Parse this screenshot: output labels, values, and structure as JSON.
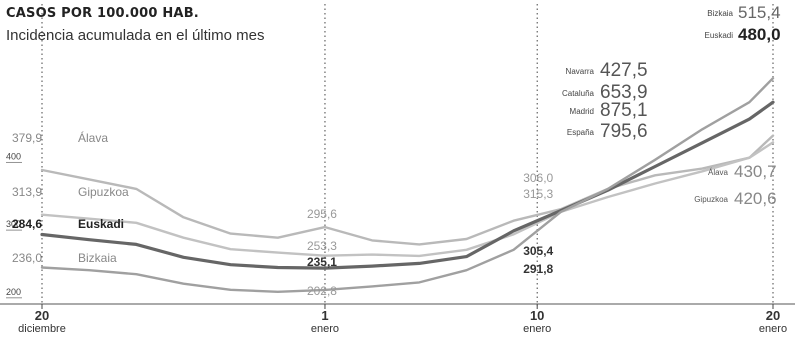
{
  "chart_data": {
    "type": "line",
    "title": "CASOS POR 100.000 HAB.",
    "subtitle": "Incidencia acumulada en el último mes",
    "x_ticks": [
      {
        "day": 0,
        "line1": "20",
        "line2": "diciembre"
      },
      {
        "day": 12,
        "line1": "1",
        "line2": "enero"
      },
      {
        "day": 21,
        "line1": "10",
        "line2": "enero"
      },
      {
        "day": 31,
        "line1": "20",
        "line2": "enero"
      }
    ],
    "y_ticks": [
      200,
      300,
      400
    ],
    "ylim": [
      185,
      560
    ],
    "xlim": [
      0,
      31
    ],
    "grid": "vertical dotted lines at x ticks",
    "series": [
      {
        "name": "Álava",
        "color": "#b9b9b9",
        "x": [
          0,
          2,
          4,
          6,
          8,
          10,
          12,
          14,
          16,
          18,
          20,
          22,
          24,
          26,
          28,
          30,
          31
        ],
        "values": [
          379.9,
          366,
          352,
          310,
          286,
          280,
          295.6,
          276,
          270,
          278,
          305,
          322,
          352,
          372,
          382,
          398,
          430.7
        ]
      },
      {
        "name": "Gipuzkoa",
        "color": "#c2c2c2",
        "x": [
          0,
          2,
          4,
          6,
          8,
          10,
          12,
          14,
          16,
          18,
          20,
          22,
          24,
          26,
          28,
          30,
          31
        ],
        "values": [
          313.9,
          308,
          302,
          280,
          263,
          258,
          253.3,
          255,
          253,
          262,
          285,
          318,
          340,
          360,
          378,
          398,
          420.6
        ]
      },
      {
        "name": "Euskadi",
        "color": "#666666",
        "x": [
          0,
          2,
          4,
          6,
          8,
          10,
          12,
          14,
          16,
          18,
          20,
          22,
          24,
          26,
          28,
          30,
          31
        ],
        "values": [
          284.6,
          277,
          270,
          251,
          240,
          236,
          235.1,
          238,
          242,
          252,
          290,
          320,
          350,
          385,
          420,
          455,
          480.0
        ]
      },
      {
        "name": "Bizkaia",
        "color": "#a0a0a0",
        "x": [
          0,
          2,
          4,
          6,
          8,
          10,
          12,
          14,
          16,
          18,
          20,
          22,
          24,
          26,
          28,
          30,
          31
        ],
        "values": [
          236.0,
          232,
          226,
          212,
          203,
          200,
          202.8,
          208,
          214,
          232,
          262,
          318,
          352,
          395,
          440,
          480,
          515.4
        ]
      }
    ],
    "label_groups": [
      {
        "day": 12,
        "labels": [
          "295,6",
          "253,3",
          "235,1",
          "202,8"
        ]
      },
      {
        "day": 21,
        "labels": [
          "306,0",
          "315,3",
          "305,4",
          "291,8"
        ]
      }
    ],
    "legend_top": [
      {
        "name": "Bizkaia",
        "value": "515,4"
      },
      {
        "name": "Euskadi",
        "value": "480,0"
      },
      {
        "name": "Navarra",
        "value": "427,5"
      },
      {
        "name": "Cataluña",
        "value": "653,9"
      },
      {
        "name": "Madrid",
        "value": "875,1"
      },
      {
        "name": "España",
        "value": "795,6"
      }
    ],
    "legend_right": [
      {
        "name": "Álava",
        "value": "430,7"
      },
      {
        "name": "Gipuzkoa",
        "value": "420,6"
      }
    ],
    "legend_left": [
      {
        "name": "Álava",
        "value": "379,9"
      },
      {
        "name": "Gipuzkoa",
        "value": "313,9"
      },
      {
        "name": "Euskadi",
        "value": "284,6"
      },
      {
        "name": "Bizkaia",
        "value": "236,0"
      }
    ]
  }
}
